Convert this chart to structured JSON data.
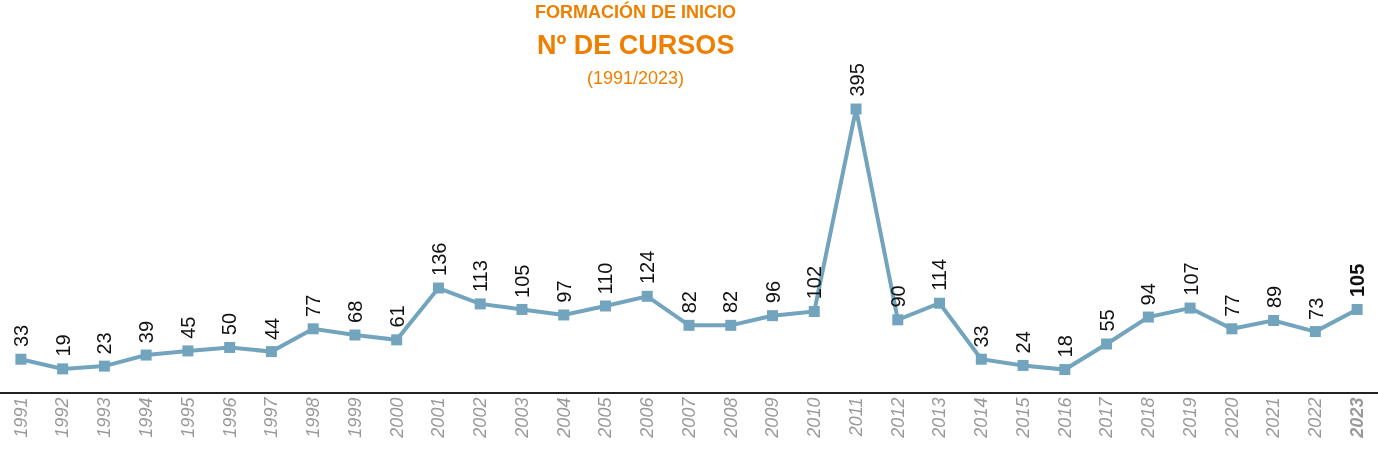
{
  "chart_data": {
    "type": "line",
    "title": "FORMACIÓN DE INICIO",
    "subtitle": "Nº DE CURSOS",
    "annotations": [
      "(1991/2023)"
    ],
    "categories": [
      "1991",
      "1992",
      "1993",
      "1994",
      "1995",
      "1996",
      "1997",
      "1998",
      "1999",
      "2000",
      "2001",
      "2002",
      "2003",
      "2004",
      "2005",
      "2006",
      "2007",
      "2008",
      "2009",
      "2010",
      "2011",
      "2012",
      "2013",
      "2014",
      "2015",
      "2016",
      "2017",
      "2018",
      "2019",
      "2020",
      "2021",
      "2022",
      "2023"
    ],
    "series": [
      {
        "color": "#72a4bd",
        "values": [
          33,
          19,
          23,
          39,
          45,
          50,
          44,
          77,
          68,
          61,
          136,
          113,
          105,
          97,
          110,
          124,
          82,
          82,
          96,
          102,
          395,
          90,
          114,
          33,
          24,
          18,
          55,
          94,
          107,
          77,
          89,
          73,
          105
        ]
      }
    ],
    "data_labels": true,
    "tick_labels": "x",
    "grid": false,
    "marker": "square",
    "line_style": "solid"
  }
}
